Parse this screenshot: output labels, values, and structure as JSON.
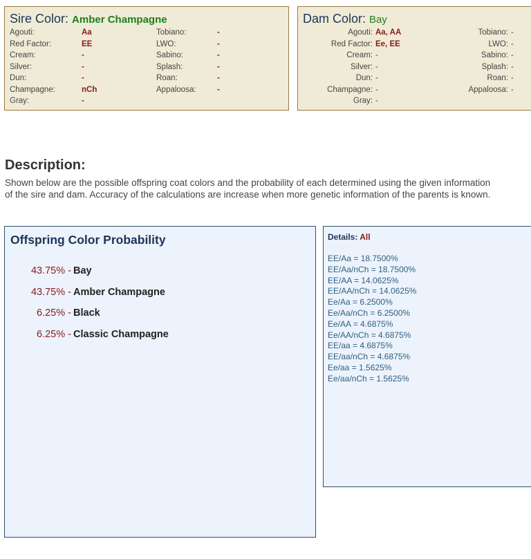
{
  "sire": {
    "title": "Sire Color:",
    "color_name": "Amber Champagne",
    "genes_left": [
      {
        "label": "Agouti:",
        "value": "Aa"
      },
      {
        "label": "Red Factor:",
        "value": "EE"
      },
      {
        "label": "Cream:",
        "value": "-"
      },
      {
        "label": "Silver:",
        "value": "-"
      },
      {
        "label": "Dun:",
        "value": "-"
      },
      {
        "label": "Champagne:",
        "value": "nCh"
      },
      {
        "label": "Gray:",
        "value": "-"
      }
    ],
    "genes_right": [
      {
        "label": "Tobiano:",
        "value": "-"
      },
      {
        "label": "LWO:",
        "value": "-"
      },
      {
        "label": "Sabino:",
        "value": "-"
      },
      {
        "label": "Splash:",
        "value": "-"
      },
      {
        "label": "Roan:",
        "value": "-"
      },
      {
        "label": "Appaloosa:",
        "value": "-"
      }
    ]
  },
  "dam": {
    "title": "Dam Color:",
    "color_name": "Bay",
    "genes_left": [
      {
        "label": "Agouti:",
        "value": "Aa, AA"
      },
      {
        "label": "Red Factor:",
        "value": "Ee, EE"
      },
      {
        "label": "Cream:",
        "value": "-"
      },
      {
        "label": "Silver:",
        "value": "-"
      },
      {
        "label": "Dun:",
        "value": "-"
      },
      {
        "label": "Champagne:",
        "value": "-"
      },
      {
        "label": "Gray:",
        "value": "-"
      }
    ],
    "genes_right": [
      {
        "label": "Tobiano:",
        "value": "-"
      },
      {
        "label": "LWO:",
        "value": "-"
      },
      {
        "label": "Sabino:",
        "value": "-"
      },
      {
        "label": "Splash:",
        "value": "-"
      },
      {
        "label": "Roan:",
        "value": "-"
      },
      {
        "label": "Appaloosa:",
        "value": "-"
      }
    ]
  },
  "description": {
    "title": "Description:",
    "text": "Shown below are the possible offspring coat colors and the probability of each determined using the given information of the sire and dam. Accuracy of the calculations are increase when more genetic information of the parents is known."
  },
  "offspring": {
    "title": "Offspring Color Probability",
    "items": [
      {
        "pct": "43.75% -",
        "name": "Bay"
      },
      {
        "pct": "43.75% -",
        "name": "Amber Champagne"
      },
      {
        "pct": "6.25% -",
        "name": "Black"
      },
      {
        "pct": "6.25% -",
        "name": "Classic Champagne"
      }
    ]
  },
  "details": {
    "label": "Details:",
    "filter": "All",
    "lines": [
      "EE/Aa = 18.7500%",
      "EE/Aa/nCh = 18.7500%",
      "EE/AA = 14.0625%",
      "EE/AA/nCh = 14.0625%",
      "Ee/Aa = 6.2500%",
      "Ee/Aa/nCh = 6.2500%",
      "Ee/AA = 4.6875%",
      "Ee/AA/nCh = 4.6875%",
      "EE/aa = 4.6875%",
      "EE/aa/nCh = 4.6875%",
      "Ee/aa = 1.5625%",
      "Ee/aa/nCh = 1.5625%"
    ]
  }
}
